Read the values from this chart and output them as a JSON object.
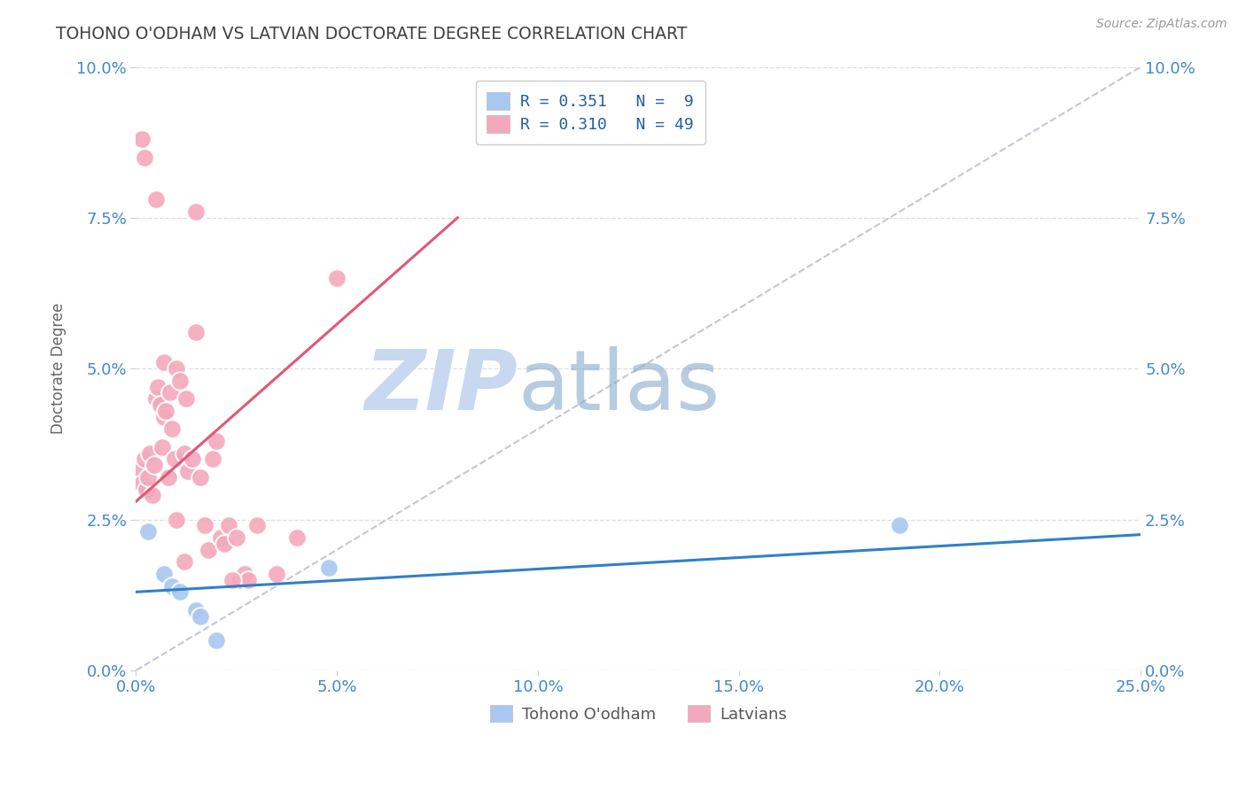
{
  "title": "TOHONO O'ODHAM VS LATVIAN DOCTORATE DEGREE CORRELATION CHART",
  "source": "Source: ZipAtlas.com",
  "ylabel": "Doctorate Degree",
  "xlabel_ticks": [
    "0.0%",
    "5.0%",
    "10.0%",
    "15.0%",
    "20.0%",
    "25.0%"
  ],
  "xlabel_vals": [
    0.0,
    5.0,
    10.0,
    15.0,
    20.0,
    25.0
  ],
  "ylabel_ticks": [
    "0.0%",
    "2.5%",
    "5.0%",
    "7.5%",
    "10.0%"
  ],
  "ylabel_vals": [
    0.0,
    2.5,
    5.0,
    7.5,
    10.0
  ],
  "xlim": [
    0.0,
    25.0
  ],
  "ylim": [
    0.0,
    10.0
  ],
  "legend_blue_label": "R = 0.351   N =  9",
  "legend_pink_label": "R = 0.310   N = 49",
  "legend_bottom_blue": "Tohono O'odham",
  "legend_bottom_pink": "Latvians",
  "blue_color": "#A8C8F0",
  "pink_color": "#F4A8BC",
  "blue_line_color": "#3080C8",
  "pink_line_color": "#E05878",
  "dashed_line_color": "#C0C0D0",
  "blue_scatter": [
    [
      0.3,
      2.3
    ],
    [
      0.7,
      1.6
    ],
    [
      0.9,
      1.4
    ],
    [
      1.1,
      1.3
    ],
    [
      1.5,
      1.0
    ],
    [
      1.6,
      0.9
    ],
    [
      2.0,
      0.5
    ],
    [
      4.8,
      1.7
    ],
    [
      19.0,
      2.4
    ]
  ],
  "pink_scatter": [
    [
      0.1,
      3.3
    ],
    [
      0.15,
      3.1
    ],
    [
      0.2,
      3.5
    ],
    [
      0.25,
      3.0
    ],
    [
      0.3,
      3.2
    ],
    [
      0.35,
      3.6
    ],
    [
      0.4,
      2.9
    ],
    [
      0.45,
      3.4
    ],
    [
      0.5,
      4.5
    ],
    [
      0.55,
      4.7
    ],
    [
      0.6,
      4.4
    ],
    [
      0.65,
      3.7
    ],
    [
      0.7,
      4.2
    ],
    [
      0.7,
      5.1
    ],
    [
      0.75,
      4.3
    ],
    [
      0.8,
      3.2
    ],
    [
      0.85,
      4.6
    ],
    [
      0.9,
      4.0
    ],
    [
      0.95,
      3.5
    ],
    [
      1.0,
      5.0
    ],
    [
      1.1,
      4.8
    ],
    [
      1.2,
      3.6
    ],
    [
      1.25,
      4.5
    ],
    [
      1.3,
      3.3
    ],
    [
      1.4,
      3.5
    ],
    [
      1.5,
      5.6
    ],
    [
      1.6,
      3.2
    ],
    [
      1.7,
      2.4
    ],
    [
      1.8,
      2.0
    ],
    [
      1.9,
      3.5
    ],
    [
      2.0,
      3.8
    ],
    [
      2.1,
      2.2
    ],
    [
      2.2,
      2.1
    ],
    [
      2.3,
      2.4
    ],
    [
      2.5,
      2.2
    ],
    [
      2.6,
      1.5
    ],
    [
      2.7,
      1.6
    ],
    [
      2.8,
      1.5
    ],
    [
      3.0,
      2.4
    ],
    [
      3.5,
      1.6
    ],
    [
      4.0,
      2.2
    ],
    [
      0.15,
      8.8
    ],
    [
      0.2,
      8.5
    ],
    [
      0.5,
      7.8
    ],
    [
      1.5,
      7.6
    ],
    [
      5.0,
      6.5
    ],
    [
      1.0,
      2.5
    ],
    [
      1.2,
      1.8
    ],
    [
      2.4,
      1.5
    ]
  ],
  "blue_trendline": [
    [
      0.0,
      1.3
    ],
    [
      25.0,
      2.25
    ]
  ],
  "pink_trendline": [
    [
      0.0,
      2.8
    ],
    [
      8.0,
      7.5
    ]
  ],
  "dashed_trendline": [
    [
      0.0,
      0.0
    ],
    [
      25.0,
      10.0
    ]
  ],
  "background_color": "#FFFFFF",
  "plot_bg_color": "#FFFFFF",
  "grid_color": "#DCDCE8",
  "title_color": "#404040",
  "axis_label_color": "#4488CC",
  "watermark_zip_color": "#C8D8F0",
  "watermark_atlas_color": "#88AACC",
  "watermark_zip": "ZIP",
  "watermark_atlas": "atlas"
}
